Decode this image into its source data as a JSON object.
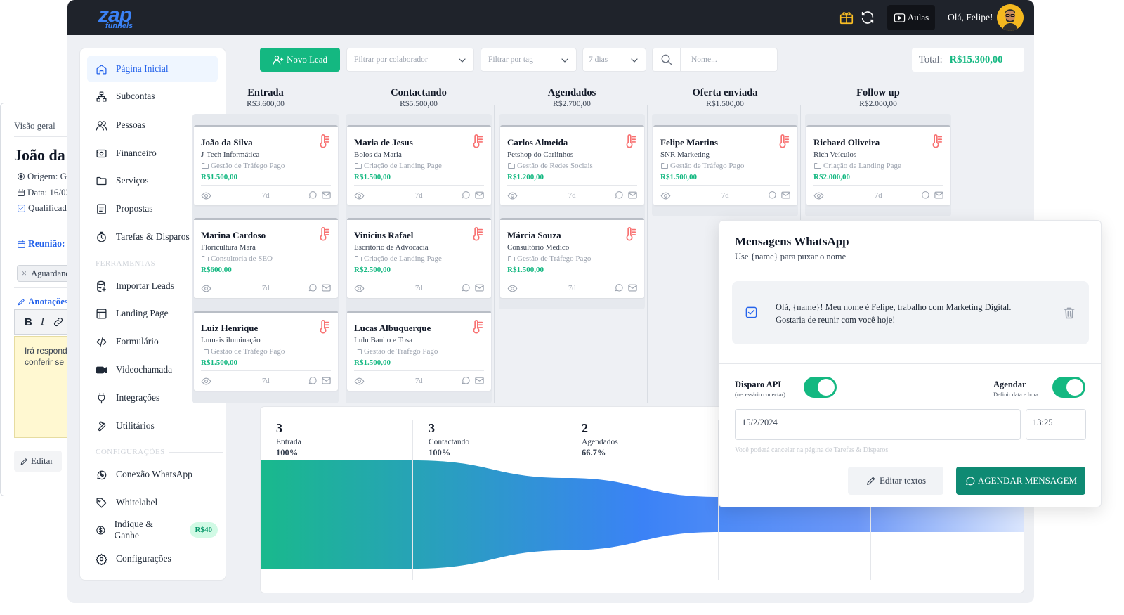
{
  "detail": {
    "section_label": "Visão geral",
    "name": "João da",
    "origin": "Origem: Go",
    "date": "Data: 16/02",
    "qualified": "Qualificad",
    "meeting_label": "Reunião:",
    "tag_chip": "Aguardand",
    "notes_label": "Anotações",
    "notes_text": "Irá responder conferir se i",
    "edit_label": "Editar"
  },
  "topbar": {
    "logo_main": "zap",
    "logo_sub": "funnels",
    "aulas_label": "Aulas",
    "greeting": "Olá, Felipe!"
  },
  "sidebar": {
    "items": [
      {
        "label": "Página Inicial",
        "icon": "home-icon"
      },
      {
        "label": "Subcontas",
        "icon": "sitemap-icon"
      },
      {
        "label": "Pessoas",
        "icon": "people-icon"
      },
      {
        "label": "Financeiro",
        "icon": "finance-icon"
      },
      {
        "label": "Serviços",
        "icon": "folder-icon"
      },
      {
        "label": "Propostas",
        "icon": "document-icon"
      },
      {
        "label": "Tarefas & Disparos",
        "icon": "timer-icon"
      }
    ],
    "section_tools": "FERRAMENTAS",
    "tools": [
      {
        "label": "Importar Leads",
        "icon": "database-icon"
      },
      {
        "label": "Landing Page",
        "icon": "layout-icon"
      },
      {
        "label": "Formulário",
        "icon": "code-icon"
      },
      {
        "label": "Videochamada",
        "icon": "video-icon"
      },
      {
        "label": "Integrações",
        "icon": "plug-icon"
      },
      {
        "label": "Utilitários",
        "icon": "wrench-icon"
      }
    ],
    "section_config": "CONFIGURAÇÕES",
    "config": [
      {
        "label": "Conexão WhatsApp",
        "icon": "whatsapp-icon"
      },
      {
        "label": "Whitelabel",
        "icon": "tag-icon"
      },
      {
        "label": "Indique & Ganhe",
        "icon": "dollar-icon",
        "badge": "R$40"
      },
      {
        "label": "Configurações",
        "icon": "gear-icon"
      }
    ]
  },
  "controls": {
    "new_lead": "Novo Lead",
    "filter_collaborator": "Filtrar por colaborador",
    "filter_tag": "Filtrar por tag",
    "period": "7 dias",
    "search_placeholder": "Nome...",
    "total_label": "Total:",
    "total_value": "R$15.300,00"
  },
  "columns": [
    {
      "title": "Entrada",
      "value": "R$3.600,00",
      "cards": [
        {
          "name": "João da Silva",
          "company": "J-Tech Informática",
          "service": "Gestão de Tráfego Pago",
          "price": "R$1.500,00",
          "age": "7d"
        },
        {
          "name": "Marina Cardoso",
          "company": "Floricultura Mara",
          "service": "Consultoria de SEO",
          "price": "R$600,00",
          "age": "7d"
        },
        {
          "name": "Luiz Henrique",
          "company": "Lumais iluminação",
          "service": "Gestão de Tráfego Pago",
          "price": "R$1.500,00",
          "age": "7d"
        }
      ]
    },
    {
      "title": "Contactando",
      "value": "R$5.500,00",
      "cards": [
        {
          "name": "Maria de Jesus",
          "company": "Bolos da Maria",
          "service": "Criação de Landing Page",
          "price": "R$1.500,00",
          "age": "7d"
        },
        {
          "name": "Vinicius Rafael",
          "company": "Escritório de Advocacia",
          "service": "Criação de Landing Page",
          "price": "R$2.500,00",
          "age": "7d"
        },
        {
          "name": "Lucas Albuquerque",
          "company": "Lulu Banho e Tosa",
          "service": "Gestão de Tráfego Pago",
          "price": "R$1.500,00",
          "age": "7d"
        }
      ]
    },
    {
      "title": "Agendados",
      "value": "R$2.700,00",
      "cards": [
        {
          "name": "Carlos Almeida",
          "company": "Petshop do Carlinhos",
          "service": "Gestão de Redes Sociais",
          "price": "R$1.200,00",
          "age": "7d"
        },
        {
          "name": "Márcia Souza",
          "company": "Consultório Médico",
          "service": "Gestão de Tráfego Pago",
          "price": "R$1.500,00",
          "age": "7d"
        }
      ]
    },
    {
      "title": "Oferta enviada",
      "value": "R$1.500,00",
      "cards": [
        {
          "name": "Felipe Martins",
          "company": "SNR Marketing",
          "service": "Gestão de Tráfego Pago",
          "price": "R$1.500,00",
          "age": "7d"
        }
      ]
    },
    {
      "title": "Follow up",
      "value": "R$2.000,00",
      "cards": [
        {
          "name": "Richard Oliveira",
          "company": "Rich Veículos",
          "service": "Criação de Landing Page",
          "price": "R$2.000,00",
          "age": "7d"
        }
      ]
    }
  ],
  "funnel": [
    {
      "count": "3",
      "label": "Entrada",
      "percent": "100%"
    },
    {
      "count": "3",
      "label": "Contactando",
      "percent": "100%"
    },
    {
      "count": "2",
      "label": "Agendados",
      "percent": "66.7%"
    }
  ],
  "whatsapp": {
    "title": "Mensagens WhatsApp",
    "subtitle": "Use {name} para puxar o nome",
    "message": "Olá, {name}! Meu nome é Felipe, trabalho com Marketing Digital. Gostaria de reunir com você hoje!",
    "api_label": "Disparo API",
    "api_sub": "(necessário conectar)",
    "schedule_label": "Agendar",
    "schedule_sub": "Definir data e hora",
    "date_value": "15/2/2024",
    "time_value": "13:25",
    "hint": "Você poderá cancelar na página de Tarefas & Disparos",
    "edit_texts": "Editar textos",
    "schedule_button": "AGENDAR MENSAGEM"
  },
  "colors": {
    "accent": "#14b881",
    "brand": "#3b82f6",
    "primary_button": "#0f8a73"
  }
}
